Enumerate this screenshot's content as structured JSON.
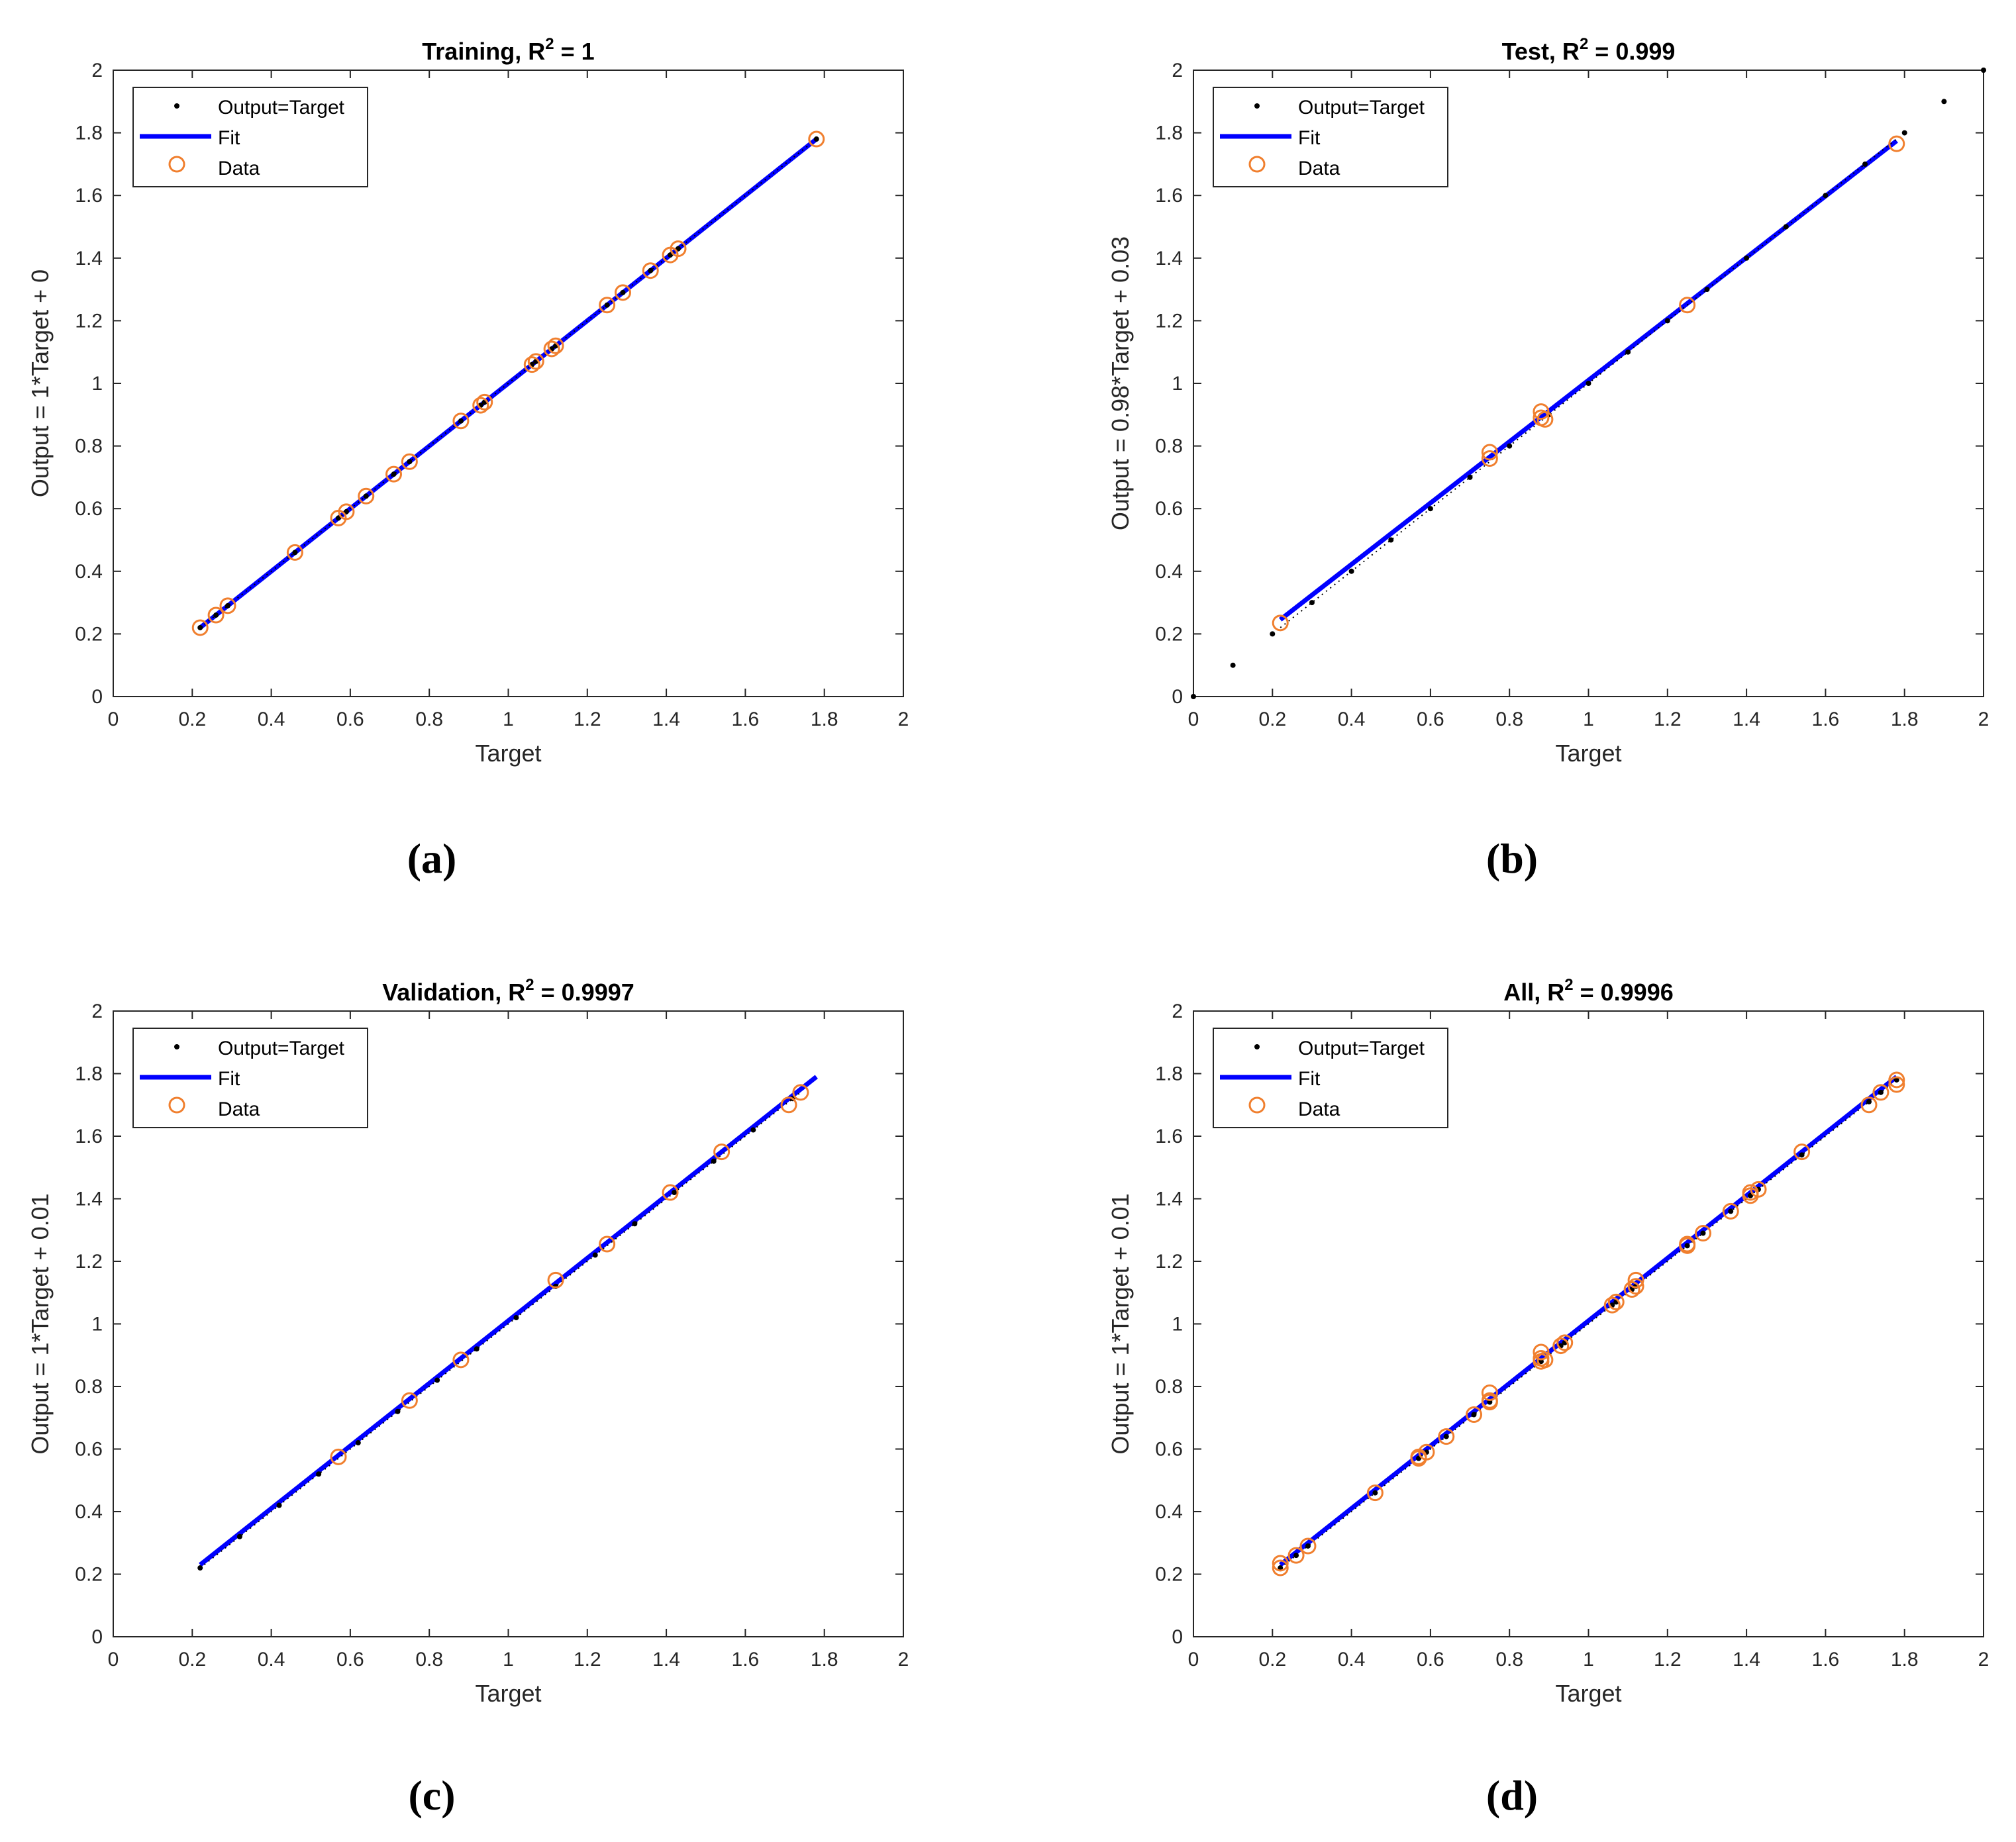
{
  "chart_data": [
    {
      "type": "scatter",
      "panel": "a",
      "caption": "(a)",
      "title_prefix": "Training, R",
      "title_sup": "2",
      "title_suffix": " = 1",
      "xlabel": "Target",
      "ylabel": "Output = 1*Target + 0",
      "xlim": [
        0,
        2
      ],
      "ylim": [
        0,
        2
      ],
      "xticks": [
        "0",
        "0.2",
        "0.4",
        "0.6",
        "0.8",
        "1",
        "1.2",
        "1.4",
        "1.6",
        "1.8",
        "2"
      ],
      "yticks": [
        "0",
        "0.2",
        "0.4",
        "0.6",
        "0.8",
        "1",
        "1.2",
        "1.4",
        "1.6",
        "1.8",
        "2"
      ],
      "legend": [
        "Output=Target",
        "Fit",
        "Data"
      ],
      "ref_line": [
        0.22,
        1.78
      ],
      "fit": {
        "slope": 1.0,
        "intercept": 0.0,
        "x_range": [
          0.22,
          1.78
        ]
      },
      "target_points": [
        0.22,
        0.26,
        0.29,
        0.46,
        0.57,
        0.59,
        0.64,
        0.71,
        0.75,
        0.88,
        0.93,
        0.94,
        1.06,
        1.07,
        1.11,
        1.12,
        1.25,
        1.29,
        1.36,
        1.41,
        1.43,
        1.78
      ],
      "data": [
        [
          0.22,
          0.22
        ],
        [
          0.26,
          0.26
        ],
        [
          0.29,
          0.29
        ],
        [
          0.46,
          0.46
        ],
        [
          0.57,
          0.57
        ],
        [
          0.59,
          0.59
        ],
        [
          0.64,
          0.64
        ],
        [
          0.71,
          0.71
        ],
        [
          0.75,
          0.75
        ],
        [
          0.88,
          0.88
        ],
        [
          0.93,
          0.93
        ],
        [
          0.94,
          0.94
        ],
        [
          1.06,
          1.06
        ],
        [
          1.07,
          1.07
        ],
        [
          1.11,
          1.11
        ],
        [
          1.12,
          1.12
        ],
        [
          1.25,
          1.25
        ],
        [
          1.29,
          1.29
        ],
        [
          1.36,
          1.36
        ],
        [
          1.41,
          1.41
        ],
        [
          1.43,
          1.43
        ],
        [
          1.78,
          1.78
        ]
      ]
    },
    {
      "type": "scatter",
      "panel": "b",
      "caption": "(b)",
      "title_prefix": "Test, R",
      "title_sup": "2",
      "title_suffix": " = 0.999",
      "xlabel": "Target",
      "ylabel": "Output = 0.98*Target + 0.03",
      "xlim": [
        0,
        2
      ],
      "ylim": [
        0,
        2
      ],
      "xticks": [
        "0",
        "0.2",
        "0.4",
        "0.6",
        "0.8",
        "1",
        "1.2",
        "1.4",
        "1.6",
        "1.8",
        "2"
      ],
      "yticks": [
        "0",
        "0.2",
        "0.4",
        "0.6",
        "0.8",
        "1",
        "1.2",
        "1.4",
        "1.6",
        "1.8",
        "2"
      ],
      "legend": [
        "Output=Target",
        "Fit",
        "Data"
      ],
      "ref_line": [
        0.22,
        1.78
      ],
      "fit": {
        "slope": 0.98,
        "intercept": 0.03,
        "x_range": [
          0.22,
          1.78
        ]
      },
      "target_points": [
        0,
        0.1,
        0.2,
        0.3,
        0.4,
        0.5,
        0.6,
        0.7,
        0.8,
        0.9,
        1.0,
        1.1,
        1.2,
        1.3,
        1.4,
        1.5,
        1.6,
        1.7,
        1.8,
        1.9,
        2.0
      ],
      "data": [
        [
          0.22,
          0.235
        ],
        [
          0.75,
          0.78
        ],
        [
          0.75,
          0.76
        ],
        [
          0.88,
          0.91
        ],
        [
          0.88,
          0.89
        ],
        [
          0.89,
          0.885
        ],
        [
          1.25,
          1.25
        ],
        [
          1.78,
          1.765
        ]
      ]
    },
    {
      "type": "scatter",
      "panel": "c",
      "caption": "(c)",
      "title_prefix": "Validation, R",
      "title_sup": "2",
      "title_suffix": " = 0.9997",
      "xlabel": "Target",
      "ylabel": "Output = 1*Target + 0.01",
      "xlim": [
        0,
        2
      ],
      "ylim": [
        0,
        2
      ],
      "xticks": [
        "0",
        "0.2",
        "0.4",
        "0.6",
        "0.8",
        "1",
        "1.2",
        "1.4",
        "1.6",
        "1.8",
        "2"
      ],
      "yticks": [
        "0",
        "0.2",
        "0.4",
        "0.6",
        "0.8",
        "1",
        "1.2",
        "1.4",
        "1.6",
        "1.8",
        "2"
      ],
      "legend": [
        "Output=Target",
        "Fit",
        "Data"
      ],
      "ref_line": [
        0.22,
        1.74
      ],
      "fit": {
        "slope": 1.0,
        "intercept": 0.01,
        "x_range": [
          0.22,
          1.78
        ]
      },
      "target_points": [
        0.22,
        0.32,
        0.42,
        0.52,
        0.62,
        0.72,
        0.82,
        0.92,
        1.02,
        1.12,
        1.22,
        1.32,
        1.42,
        1.52,
        1.62,
        1.72
      ],
      "data": [
        [
          0.57,
          0.575
        ],
        [
          0.75,
          0.755
        ],
        [
          0.88,
          0.885
        ],
        [
          1.12,
          1.14
        ],
        [
          1.25,
          1.255
        ],
        [
          1.41,
          1.42
        ],
        [
          1.54,
          1.55
        ],
        [
          1.71,
          1.7
        ],
        [
          1.74,
          1.74
        ]
      ]
    },
    {
      "type": "scatter",
      "panel": "d",
      "caption": "(d)",
      "title_prefix": "All, R",
      "title_sup": "2",
      "title_suffix": " = 0.9996",
      "xlabel": "Target",
      "ylabel": "Output = 1*Target + 0.01",
      "xlim": [
        0,
        2
      ],
      "ylim": [
        0,
        2
      ],
      "xticks": [
        "0",
        "0.2",
        "0.4",
        "0.6",
        "0.8",
        "1",
        "1.2",
        "1.4",
        "1.6",
        "1.8",
        "2"
      ],
      "yticks": [
        "0",
        "0.2",
        "0.4",
        "0.6",
        "0.8",
        "1",
        "1.2",
        "1.4",
        "1.6",
        "1.8",
        "2"
      ],
      "legend": [
        "Output=Target",
        "Fit",
        "Data"
      ],
      "ref_line": [
        0.22,
        1.78
      ],
      "fit": {
        "slope": 1.0,
        "intercept": 0.01,
        "x_range": [
          0.22,
          1.78
        ]
      },
      "target_points": [
        0.22,
        0.26,
        0.29,
        0.46,
        0.57,
        0.59,
        0.64,
        0.71,
        0.75,
        0.88,
        0.93,
        0.94,
        1.06,
        1.07,
        1.11,
        1.12,
        1.25,
        1.29,
        1.36,
        1.41,
        1.43,
        1.54,
        1.71,
        1.74,
        1.78
      ],
      "data": [
        [
          0.22,
          0.22
        ],
        [
          0.22,
          0.235
        ],
        [
          0.26,
          0.26
        ],
        [
          0.29,
          0.29
        ],
        [
          0.46,
          0.46
        ],
        [
          0.57,
          0.57
        ],
        [
          0.57,
          0.575
        ],
        [
          0.59,
          0.59
        ],
        [
          0.64,
          0.64
        ],
        [
          0.71,
          0.71
        ],
        [
          0.75,
          0.75
        ],
        [
          0.75,
          0.78
        ],
        [
          0.75,
          0.755
        ],
        [
          0.88,
          0.88
        ],
        [
          0.88,
          0.91
        ],
        [
          0.88,
          0.89
        ],
        [
          0.89,
          0.885
        ],
        [
          0.93,
          0.93
        ],
        [
          0.94,
          0.94
        ],
        [
          1.06,
          1.06
        ],
        [
          1.07,
          1.07
        ],
        [
          1.11,
          1.11
        ],
        [
          1.12,
          1.12
        ],
        [
          1.12,
          1.14
        ],
        [
          1.25,
          1.25
        ],
        [
          1.25,
          1.255
        ],
        [
          1.29,
          1.29
        ],
        [
          1.36,
          1.36
        ],
        [
          1.41,
          1.41
        ],
        [
          1.41,
          1.42
        ],
        [
          1.43,
          1.43
        ],
        [
          1.54,
          1.55
        ],
        [
          1.71,
          1.7
        ],
        [
          1.74,
          1.74
        ],
        [
          1.78,
          1.78
        ],
        [
          1.78,
          1.765
        ]
      ]
    }
  ],
  "colors": {
    "fit": "#0000ff",
    "data": "#f07f2e",
    "target": "#000000",
    "axis": "#262626"
  }
}
